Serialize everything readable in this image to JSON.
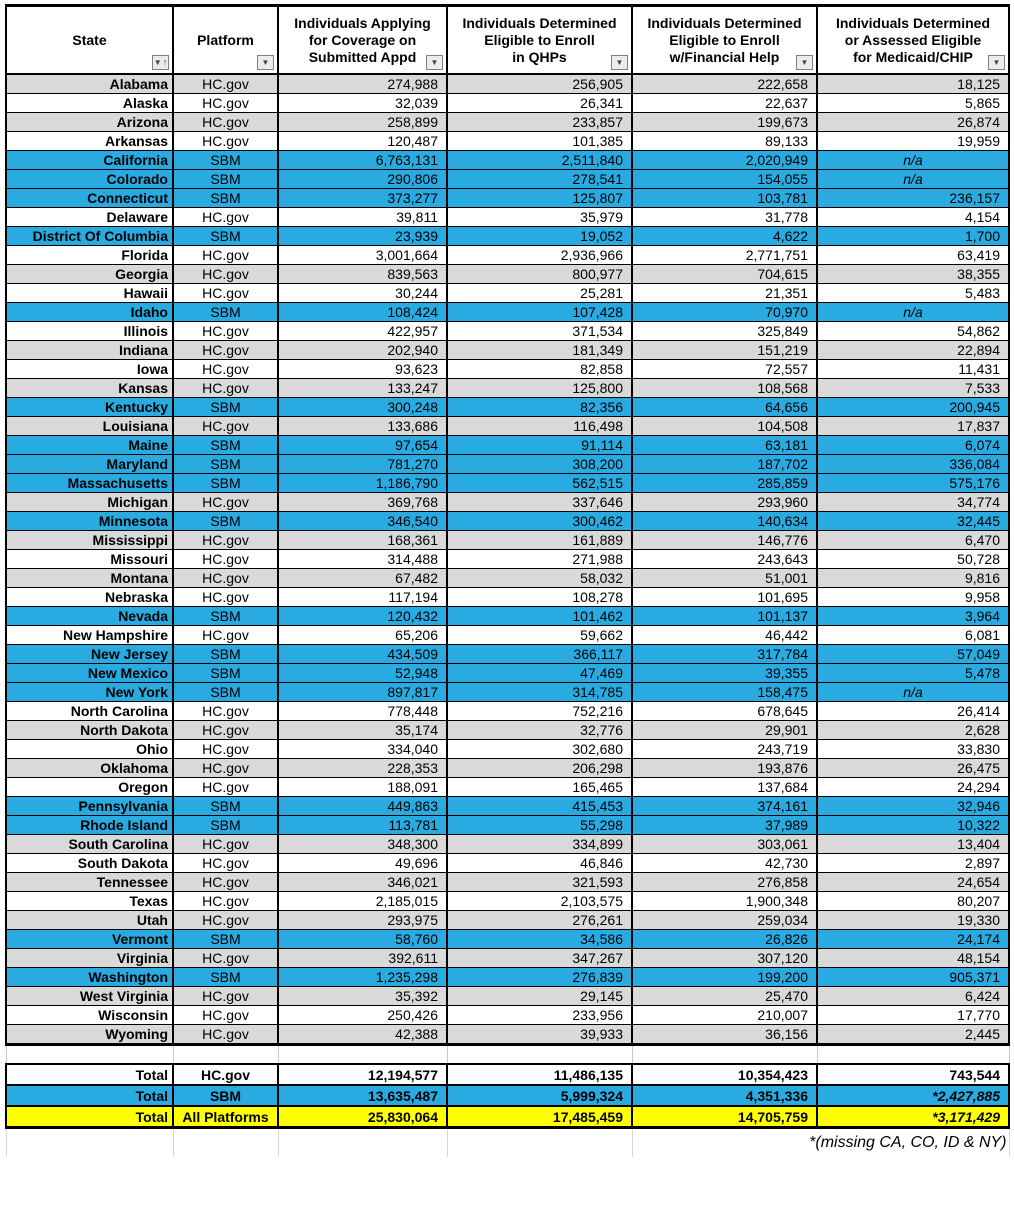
{
  "colors": {
    "sbm_blue": "#29ABE2",
    "band_gray": "#D9D9D9",
    "total_yellow": "#FFFF00",
    "grid": "#000000"
  },
  "icons": {
    "filter_glyph": "▼",
    "sort_asc_glyph": "↑"
  },
  "table": {
    "columns": [
      {
        "label": "State",
        "filter_icon": "sort-filter-dropdown-icon"
      },
      {
        "label": "Platform",
        "filter_icon": "filter-dropdown-icon"
      },
      {
        "label": "Individuals Applying\nfor Coverage on\nSubmitted Appd",
        "filter_icon": "filter-dropdown-icon"
      },
      {
        "label": "Individuals Determined\nEligible to Enroll\nin QHPs",
        "filter_icon": "filter-dropdown-icon"
      },
      {
        "label": "Individuals Determined\nEligible to Enroll\nw/Financial Help",
        "filter_icon": "filter-dropdown-icon"
      },
      {
        "label": "Individuals Determined\nor Assessed Eligible\nfor Medicaid/CHIP",
        "filter_icon": "filter-dropdown-icon"
      }
    ],
    "rows": [
      {
        "state": "Alabama",
        "platform": "HC.gov",
        "applying": "274,988",
        "qhps": "256,905",
        "financial_help": "222,658",
        "medicaid": "18,125",
        "shade": "gray"
      },
      {
        "state": "Alaska",
        "platform": "HC.gov",
        "applying": "32,039",
        "qhps": "26,341",
        "financial_help": "22,637",
        "medicaid": "5,865",
        "shade": "white"
      },
      {
        "state": "Arizona",
        "platform": "HC.gov",
        "applying": "258,899",
        "qhps": "233,857",
        "financial_help": "199,673",
        "medicaid": "26,874",
        "shade": "gray"
      },
      {
        "state": "Arkansas",
        "platform": "HC.gov",
        "applying": "120,487",
        "qhps": "101,385",
        "financial_help": "89,133",
        "medicaid": "19,959",
        "shade": "white"
      },
      {
        "state": "California",
        "platform": "SBM",
        "applying": "6,763,131",
        "qhps": "2,511,840",
        "financial_help": "2,020,949",
        "medicaid": "n/a",
        "shade": "blue"
      },
      {
        "state": "Colorado",
        "platform": "SBM",
        "applying": "290,806",
        "qhps": "278,541",
        "financial_help": "154,055",
        "medicaid": "n/a",
        "shade": "blue"
      },
      {
        "state": "Connecticut",
        "platform": "SBM",
        "applying": "373,277",
        "qhps": "125,807",
        "financial_help": "103,781",
        "medicaid": "236,157",
        "shade": "blue"
      },
      {
        "state": "Delaware",
        "platform": "HC.gov",
        "applying": "39,811",
        "qhps": "35,979",
        "financial_help": "31,778",
        "medicaid": "4,154",
        "shade": "white"
      },
      {
        "state": "District Of Columbia",
        "platform": "SBM",
        "applying": "23,939",
        "qhps": "19,052",
        "financial_help": "4,622",
        "medicaid": "1,700",
        "shade": "blue"
      },
      {
        "state": "Florida",
        "platform": "HC.gov",
        "applying": "3,001,664",
        "qhps": "2,936,966",
        "financial_help": "2,771,751",
        "medicaid": "63,419",
        "shade": "white"
      },
      {
        "state": "Georgia",
        "platform": "HC.gov",
        "applying": "839,563",
        "qhps": "800,977",
        "financial_help": "704,615",
        "medicaid": "38,355",
        "shade": "gray"
      },
      {
        "state": "Hawaii",
        "platform": "HC.gov",
        "applying": "30,244",
        "qhps": "25,281",
        "financial_help": "21,351",
        "medicaid": "5,483",
        "shade": "white"
      },
      {
        "state": "Idaho",
        "platform": "SBM",
        "applying": "108,424",
        "qhps": "107,428",
        "financial_help": "70,970",
        "medicaid": "n/a",
        "shade": "blue"
      },
      {
        "state": "Illinois",
        "platform": "HC.gov",
        "applying": "422,957",
        "qhps": "371,534",
        "financial_help": "325,849",
        "medicaid": "54,862",
        "shade": "white"
      },
      {
        "state": "Indiana",
        "platform": "HC.gov",
        "applying": "202,940",
        "qhps": "181,349",
        "financial_help": "151,219",
        "medicaid": "22,894",
        "shade": "gray"
      },
      {
        "state": "Iowa",
        "platform": "HC.gov",
        "applying": "93,623",
        "qhps": "82,858",
        "financial_help": "72,557",
        "medicaid": "11,431",
        "shade": "white"
      },
      {
        "state": "Kansas",
        "platform": "HC.gov",
        "applying": "133,247",
        "qhps": "125,800",
        "financial_help": "108,568",
        "medicaid": "7,533",
        "shade": "gray"
      },
      {
        "state": "Kentucky",
        "platform": "SBM",
        "applying": "300,248",
        "qhps": "82,356",
        "financial_help": "64,656",
        "medicaid": "200,945",
        "shade": "blue"
      },
      {
        "state": "Louisiana",
        "platform": "HC.gov",
        "applying": "133,686",
        "qhps": "116,498",
        "financial_help": "104,508",
        "medicaid": "17,837",
        "shade": "gray"
      },
      {
        "state": "Maine",
        "platform": "SBM",
        "applying": "97,654",
        "qhps": "91,114",
        "financial_help": "63,181",
        "medicaid": "6,074",
        "shade": "blue"
      },
      {
        "state": "Maryland",
        "platform": "SBM",
        "applying": "781,270",
        "qhps": "308,200",
        "financial_help": "187,702",
        "medicaid": "336,084",
        "shade": "blue"
      },
      {
        "state": "Massachusetts",
        "platform": "SBM",
        "applying": "1,186,790",
        "qhps": "562,515",
        "financial_help": "285,859",
        "medicaid": "575,176",
        "shade": "blue"
      },
      {
        "state": "Michigan",
        "platform": "HC.gov",
        "applying": "369,768",
        "qhps": "337,646",
        "financial_help": "293,960",
        "medicaid": "34,774",
        "shade": "gray"
      },
      {
        "state": "Minnesota",
        "platform": "SBM",
        "applying": "346,540",
        "qhps": "300,462",
        "financial_help": "140,634",
        "medicaid": "32,445",
        "shade": "blue"
      },
      {
        "state": "Mississippi",
        "platform": "HC.gov",
        "applying": "168,361",
        "qhps": "161,889",
        "financial_help": "146,776",
        "medicaid": "6,470",
        "shade": "gray"
      },
      {
        "state": "Missouri",
        "platform": "HC.gov",
        "applying": "314,488",
        "qhps": "271,988",
        "financial_help": "243,643",
        "medicaid": "50,728",
        "shade": "white"
      },
      {
        "state": "Montana",
        "platform": "HC.gov",
        "applying": "67,482",
        "qhps": "58,032",
        "financial_help": "51,001",
        "medicaid": "9,816",
        "shade": "gray"
      },
      {
        "state": "Nebraska",
        "platform": "HC.gov",
        "applying": "117,194",
        "qhps": "108,278",
        "financial_help": "101,695",
        "medicaid": "9,958",
        "shade": "white"
      },
      {
        "state": "Nevada",
        "platform": "SBM",
        "applying": "120,432",
        "qhps": "101,462",
        "financial_help": "101,137",
        "medicaid": "3,964",
        "shade": "blue"
      },
      {
        "state": "New Hampshire",
        "platform": "HC.gov",
        "applying": "65,206",
        "qhps": "59,662",
        "financial_help": "46,442",
        "medicaid": "6,081",
        "shade": "white"
      },
      {
        "state": "New Jersey",
        "platform": "SBM",
        "applying": "434,509",
        "qhps": "366,117",
        "financial_help": "317,784",
        "medicaid": "57,049",
        "shade": "blue"
      },
      {
        "state": "New Mexico",
        "platform": "SBM",
        "applying": "52,948",
        "qhps": "47,469",
        "financial_help": "39,355",
        "medicaid": "5,478",
        "shade": "blue"
      },
      {
        "state": "New York",
        "platform": "SBM",
        "applying": "897,817",
        "qhps": "314,785",
        "financial_help": "158,475",
        "medicaid": "n/a",
        "shade": "blue"
      },
      {
        "state": "North Carolina",
        "platform": "HC.gov",
        "applying": "778,448",
        "qhps": "752,216",
        "financial_help": "678,645",
        "medicaid": "26,414",
        "shade": "white"
      },
      {
        "state": "North Dakota",
        "platform": "HC.gov",
        "applying": "35,174",
        "qhps": "32,776",
        "financial_help": "29,901",
        "medicaid": "2,628",
        "shade": "gray"
      },
      {
        "state": "Ohio",
        "platform": "HC.gov",
        "applying": "334,040",
        "qhps": "302,680",
        "financial_help": "243,719",
        "medicaid": "33,830",
        "shade": "white"
      },
      {
        "state": "Oklahoma",
        "platform": "HC.gov",
        "applying": "228,353",
        "qhps": "206,298",
        "financial_help": "193,876",
        "medicaid": "26,475",
        "shade": "gray"
      },
      {
        "state": "Oregon",
        "platform": "HC.gov",
        "applying": "188,091",
        "qhps": "165,465",
        "financial_help": "137,684",
        "medicaid": "24,294",
        "shade": "white"
      },
      {
        "state": "Pennsylvania",
        "platform": "SBM",
        "applying": "449,863",
        "qhps": "415,453",
        "financial_help": "374,161",
        "medicaid": "32,946",
        "shade": "blue"
      },
      {
        "state": "Rhode Island",
        "platform": "SBM",
        "applying": "113,781",
        "qhps": "55,298",
        "financial_help": "37,989",
        "medicaid": "10,322",
        "shade": "blue"
      },
      {
        "state": "South Carolina",
        "platform": "HC.gov",
        "applying": "348,300",
        "qhps": "334,899",
        "financial_help": "303,061",
        "medicaid": "13,404",
        "shade": "gray"
      },
      {
        "state": "South Dakota",
        "platform": "HC.gov",
        "applying": "49,696",
        "qhps": "46,846",
        "financial_help": "42,730",
        "medicaid": "2,897",
        "shade": "white"
      },
      {
        "state": "Tennessee",
        "platform": "HC.gov",
        "applying": "346,021",
        "qhps": "321,593",
        "financial_help": "276,858",
        "medicaid": "24,654",
        "shade": "gray"
      },
      {
        "state": "Texas",
        "platform": "HC.gov",
        "applying": "2,185,015",
        "qhps": "2,103,575",
        "financial_help": "1,900,348",
        "medicaid": "80,207",
        "shade": "white"
      },
      {
        "state": "Utah",
        "platform": "HC.gov",
        "applying": "293,975",
        "qhps": "276,261",
        "financial_help": "259,034",
        "medicaid": "19,330",
        "shade": "gray"
      },
      {
        "state": "Vermont",
        "platform": "SBM",
        "applying": "58,760",
        "qhps": "34,586",
        "financial_help": "26,826",
        "medicaid": "24,174",
        "shade": "blue"
      },
      {
        "state": "Virginia",
        "platform": "HC.gov",
        "applying": "392,611",
        "qhps": "347,267",
        "financial_help": "307,120",
        "medicaid": "48,154",
        "shade": "gray"
      },
      {
        "state": "Washington",
        "platform": "SBM",
        "applying": "1,235,298",
        "qhps": "276,839",
        "financial_help": "199,200",
        "medicaid": "905,371",
        "shade": "blue"
      },
      {
        "state": "West Virginia",
        "platform": "HC.gov",
        "applying": "35,392",
        "qhps": "29,145",
        "financial_help": "25,470",
        "medicaid": "6,424",
        "shade": "gray"
      },
      {
        "state": "Wisconsin",
        "platform": "HC.gov",
        "applying": "250,426",
        "qhps": "233,956",
        "financial_help": "210,007",
        "medicaid": "17,770",
        "shade": "white"
      },
      {
        "state": "Wyoming",
        "platform": "HC.gov",
        "applying": "42,388",
        "qhps": "39,933",
        "financial_help": "36,156",
        "medicaid": "2,445",
        "shade": "gray"
      }
    ],
    "totals": [
      {
        "label": "Total",
        "platform": "HC.gov",
        "applying": "12,194,577",
        "qhps": "11,486,135",
        "financial_help": "10,354,423",
        "medicaid": "743,544",
        "shade": "white"
      },
      {
        "label": "Total",
        "platform": "SBM",
        "applying": "13,635,487",
        "qhps": "5,999,324",
        "financial_help": "4,351,336",
        "medicaid": "*2,427,885",
        "shade": "blue"
      },
      {
        "label": "Total",
        "platform": "All Platforms",
        "applying": "25,830,064",
        "qhps": "17,485,459",
        "financial_help": "14,705,759",
        "medicaid": "*3,171,429",
        "shade": "yellow"
      }
    ],
    "footnote": "*(missing CA, CO, ID & NY)"
  }
}
